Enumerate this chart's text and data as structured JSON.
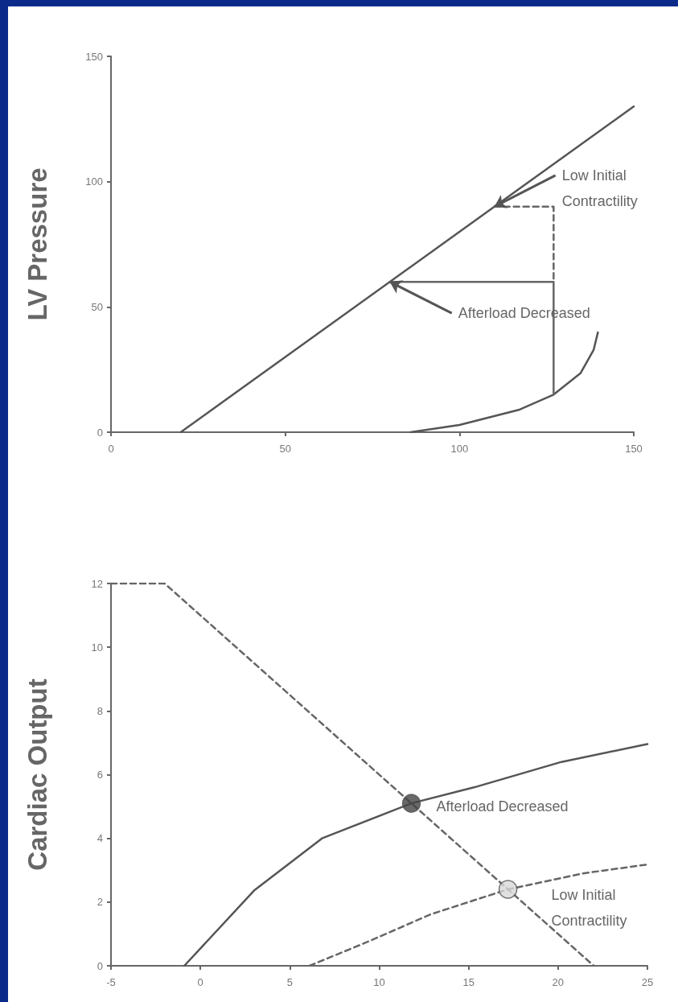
{
  "chart_data": [
    {
      "type": "line",
      "ylabel": "LV Pressure",
      "xlim": [
        0,
        150
      ],
      "ylim": [
        0,
        150
      ],
      "xticks": [
        0,
        50,
        100,
        150
      ],
      "yticks": [
        0,
        50,
        100,
        150
      ],
      "grid": false,
      "marker": "none",
      "series": [
        {
          "x": [
            20,
            150
          ],
          "values": [
            0,
            130
          ],
          "color": "#555555",
          "line_style": "solid"
        },
        {
          "x": [
            86,
            100,
            117,
            127,
            134.7,
            138.5,
            139.7
          ],
          "values": [
            0,
            2.9,
            8.9,
            15,
            23.5,
            32.9,
            39.8
          ],
          "color": "#555555",
          "line_style": "solid"
        },
        {
          "x": [
            80,
            127,
            127
          ],
          "values": [
            60,
            60,
            15
          ],
          "color": "#666666",
          "line_style": "solid"
        },
        {
          "x": [
            110,
            127,
            127
          ],
          "values": [
            90,
            90,
            60
          ],
          "color": "#666666",
          "line_style": "dashed"
        }
      ],
      "annotations": [
        {
          "text": "Low Initial Contractility",
          "x": 110,
          "y": 90
        },
        {
          "text": "Afterload Decreased",
          "x": 80,
          "y": 60
        }
      ]
    },
    {
      "type": "line",
      "ylabel": "Cardiac Output",
      "xlim": [
        -5,
        25
      ],
      "ylim": [
        0,
        12
      ],
      "xticks": [
        -5,
        0,
        5,
        10,
        15,
        20,
        25
      ],
      "yticks": [
        0,
        2,
        4,
        6,
        8,
        10,
        12
      ],
      "grid": false,
      "marker": "none",
      "series": [
        {
          "x": [
            -5,
            -2,
            22
          ],
          "values": [
            12,
            12,
            0
          ],
          "color": "#666666",
          "line_style": "dashed"
        },
        {
          "x": [
            -0.9,
            3,
            6.8,
            11.8,
            15.3,
            20.2,
            25
          ],
          "values": [
            0,
            2.36,
            4,
            5.1,
            5.6,
            6.4,
            6.96
          ],
          "color": "#555555",
          "line_style": "solid"
        },
        {
          "x": [
            6.1,
            9.3,
            12.9,
            17.2,
            21.4,
            25
          ],
          "values": [
            0,
            0.74,
            1.62,
            2.4,
            2.9,
            3.18
          ],
          "color": "#666666",
          "line_style": "dashed"
        },
        {
          "type": "scatter",
          "x": [
            11.8,
            17.2
          ],
          "values": [
            5.1,
            2.4
          ],
          "colors": [
            "#444444",
            "#d8d8d8"
          ],
          "marker": "circle"
        }
      ],
      "annotations": [
        {
          "text": "Afterload Decreased",
          "x": 11.8,
          "y": 5.1
        },
        "Low Initial Contractility"
      ]
    }
  ]
}
